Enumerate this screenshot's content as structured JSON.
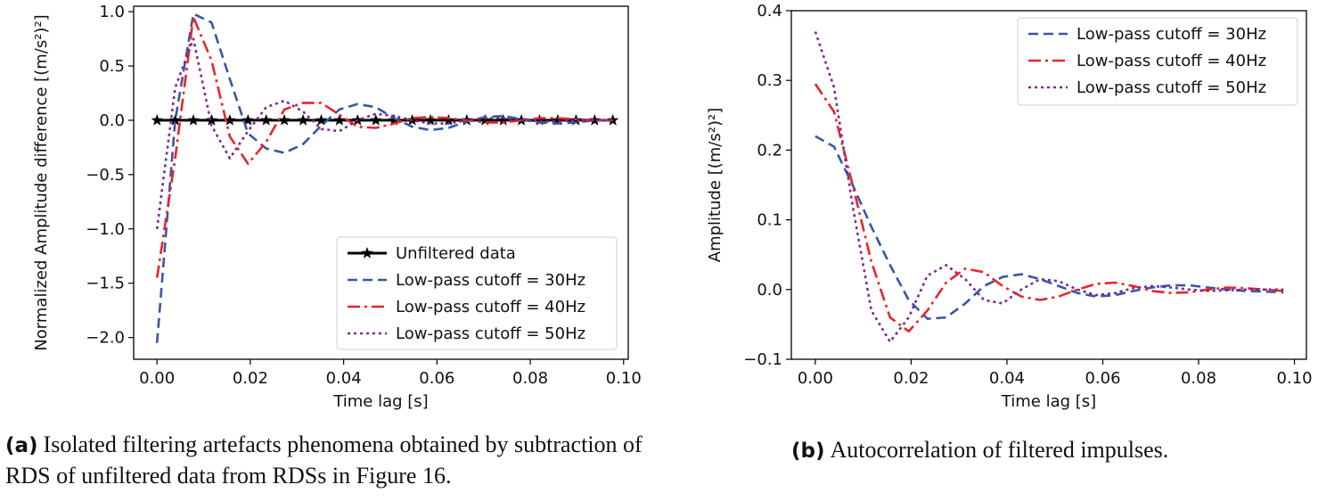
{
  "captions": {
    "a_tag": "(a)",
    "a_text": "Isolated filtering artefacts phenomena obtained by subtraction of RDS of unfiltered data from RDSs in Figure 16.",
    "b_tag": "(b)",
    "b_text": "Autocorrelation of filtered impulses."
  },
  "colors": {
    "unfiltered": "#000000",
    "cutoff30": "#3a56a6",
    "cutoff40": "#e8252a",
    "cutoff50": "#7a2b8a"
  },
  "chart_data": [
    {
      "type": "line",
      "xlabel": "Time lag [s]",
      "ylabel": "Normalized Amplitude difference [(m/s²)²]",
      "xlim": [
        -0.005,
        0.101
      ],
      "ylim": [
        -2.2,
        1.05
      ],
      "xticks": [
        "0.00",
        "0.02",
        "0.04",
        "0.06",
        "0.08",
        "0.10"
      ],
      "xtick_values": [
        0.0,
        0.02,
        0.04,
        0.06,
        0.08,
        0.1
      ],
      "yticks": [
        "1.0",
        "0.5",
        "0.0",
        "−0.5",
        "−1.0",
        "−1.5",
        "−2.0"
      ],
      "ytick_values": [
        1.0,
        0.5,
        0.0,
        -0.5,
        -1.0,
        -1.5,
        -2.0
      ],
      "legend_position": "lower-right",
      "x": [
        0.0,
        0.0039,
        0.0078,
        0.0117,
        0.0156,
        0.0195,
        0.0234,
        0.0273,
        0.0313,
        0.0352,
        0.0391,
        0.043,
        0.0469,
        0.0508,
        0.0547,
        0.0586,
        0.0625,
        0.0664,
        0.0703,
        0.0742,
        0.0781,
        0.082,
        0.0859,
        0.0898,
        0.0938,
        0.0977
      ],
      "series": [
        {
          "name": "Unfiltered data",
          "style": "solid-star",
          "color_key": "unfiltered",
          "values": [
            0,
            0,
            0,
            0,
            0,
            0,
            0,
            0,
            0,
            0,
            0,
            0,
            0,
            0,
            0,
            0,
            0,
            0,
            0,
            0,
            0,
            0,
            0,
            0,
            0,
            0
          ]
        },
        {
          "name": "Low-pass cutoff = 30Hz",
          "style": "dashed",
          "color_key": "cutoff30",
          "values": [
            -2.05,
            0.0,
            0.98,
            0.9,
            0.38,
            -0.12,
            -0.26,
            -0.3,
            -0.22,
            -0.05,
            0.1,
            0.15,
            0.12,
            0.02,
            -0.06,
            -0.09,
            -0.07,
            -0.01,
            0.03,
            0.04,
            0.01,
            -0.02,
            -0.03,
            -0.02,
            0.0,
            0.0
          ]
        },
        {
          "name": "Low-pass cutoff = 40Hz",
          "style": "dashdot",
          "color_key": "cutoff40",
          "values": [
            -1.45,
            -0.35,
            0.95,
            0.55,
            -0.15,
            -0.4,
            -0.2,
            0.1,
            0.16,
            0.16,
            0.05,
            -0.06,
            -0.07,
            -0.03,
            0.02,
            0.03,
            0.02,
            0.0,
            -0.02,
            -0.02,
            0.0,
            0.02,
            0.02,
            0.01,
            0.0,
            0.0
          ]
        },
        {
          "name": "Low-pass cutoff = 50Hz",
          "style": "dotted",
          "color_key": "cutoff50",
          "values": [
            -1.0,
            0.3,
            0.75,
            -0.05,
            -0.35,
            -0.1,
            0.12,
            0.18,
            0.08,
            -0.08,
            -0.1,
            0.0,
            0.06,
            0.04,
            0.0,
            -0.03,
            -0.03,
            0.0,
            0.02,
            0.02,
            0.0,
            -0.01,
            -0.01,
            0.0,
            0.0,
            0.0
          ]
        }
      ]
    },
    {
      "type": "line",
      "xlabel": "Time lag [s]",
      "ylabel": "Amplitude [(m/s²)²]",
      "xlim": [
        -0.005,
        0.1025
      ],
      "ylim": [
        -0.1,
        0.4
      ],
      "xticks": [
        "0.00",
        "0.02",
        "0.04",
        "0.06",
        "0.08",
        "0.10"
      ],
      "xtick_values": [
        0.0,
        0.02,
        0.04,
        0.06,
        0.08,
        0.1
      ],
      "yticks": [
        "0.4",
        "0.3",
        "0.2",
        "0.1",
        "0.0",
        "−0.1"
      ],
      "ytick_values": [
        0.4,
        0.3,
        0.2,
        0.1,
        0.0,
        -0.1
      ],
      "legend_position": "upper-right",
      "x": [
        0.0,
        0.0039,
        0.0078,
        0.0117,
        0.0156,
        0.0195,
        0.0234,
        0.0273,
        0.0313,
        0.0352,
        0.0391,
        0.043,
        0.0469,
        0.0508,
        0.0547,
        0.0586,
        0.0625,
        0.0664,
        0.0703,
        0.0742,
        0.0781,
        0.082,
        0.0859,
        0.0898,
        0.0938,
        0.0977
      ],
      "series": [
        {
          "name": "Low-pass cutoff = 30Hz",
          "style": "dashed",
          "color_key": "cutoff30",
          "values": [
            0.22,
            0.205,
            0.15,
            0.09,
            0.035,
            -0.015,
            -0.042,
            -0.04,
            -0.02,
            0.005,
            0.018,
            0.022,
            0.015,
            0.005,
            -0.005,
            -0.01,
            -0.008,
            -0.002,
            0.003,
            0.006,
            0.006,
            0.003,
            0.0,
            -0.002,
            -0.003,
            -0.004
          ]
        },
        {
          "name": "Low-pass cutoff = 40Hz",
          "style": "dashdot",
          "color_key": "cutoff40",
          "values": [
            0.295,
            0.255,
            0.15,
            0.04,
            -0.04,
            -0.06,
            -0.03,
            0.01,
            0.03,
            0.025,
            0.005,
            -0.01,
            -0.015,
            -0.01,
            0.0,
            0.008,
            0.01,
            0.005,
            -0.002,
            -0.005,
            -0.004,
            0.0,
            0.003,
            0.002,
            0.0,
            -0.002
          ]
        },
        {
          "name": "Low-pass cutoff = 50Hz",
          "style": "dotted",
          "color_key": "cutoff50",
          "values": [
            0.37,
            0.29,
            0.12,
            -0.03,
            -0.075,
            -0.04,
            0.02,
            0.035,
            0.015,
            -0.015,
            -0.02,
            0.0,
            0.015,
            0.012,
            0.0,
            -0.008,
            -0.005,
            0.002,
            0.005,
            0.003,
            0.0,
            -0.002,
            -0.001,
            0.0,
            0.0,
            0.0
          ]
        }
      ]
    }
  ]
}
